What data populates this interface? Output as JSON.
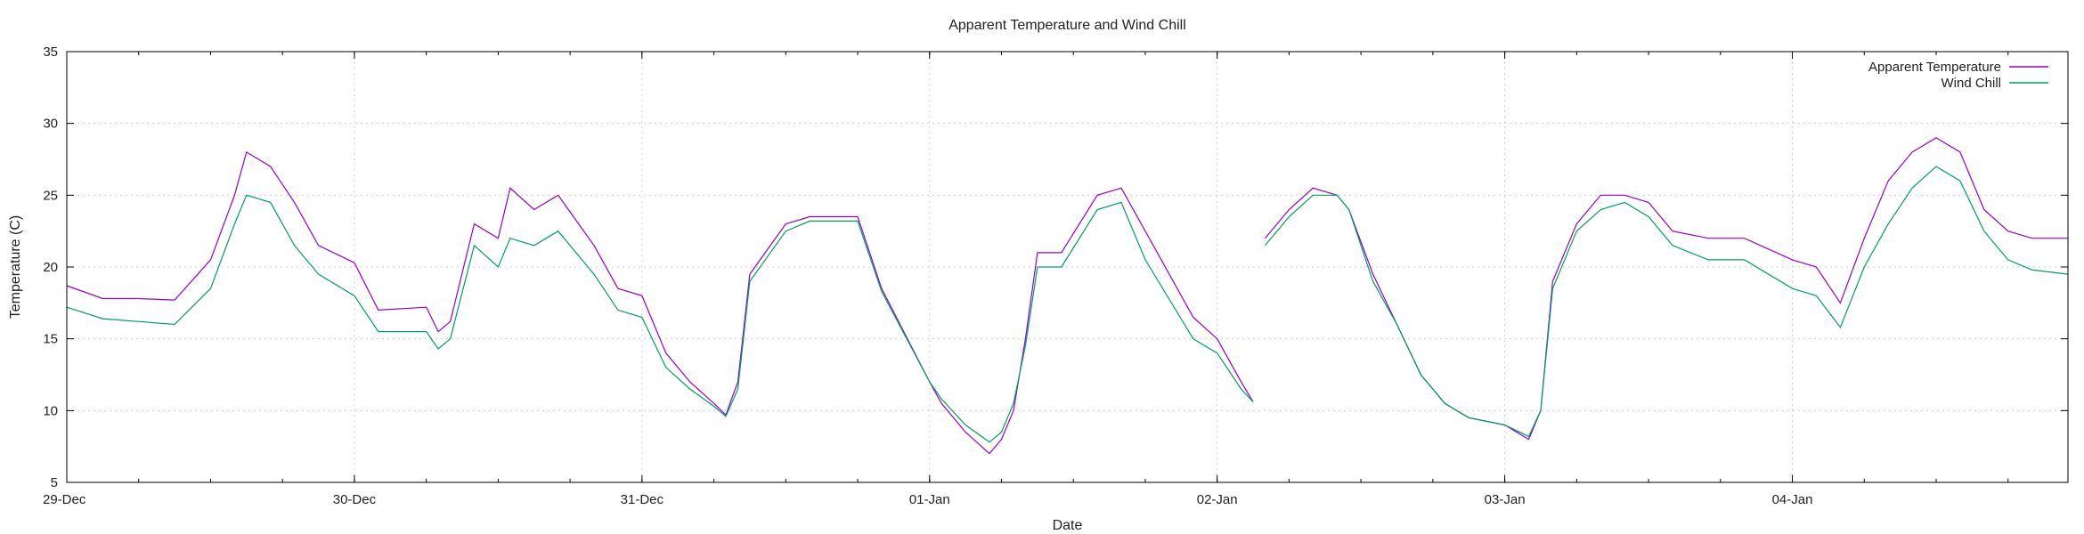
{
  "chart_data": {
    "type": "line",
    "title": "Apparent Temperature and Wind Chill",
    "xlabel": "Date",
    "ylabel": "Temperature (C)",
    "xlim": [
      "2024-12-29T00:00",
      "2025-01-04T23:00"
    ],
    "ylim": [
      5,
      35
    ],
    "yticks": [
      5,
      10,
      15,
      20,
      25,
      30,
      35
    ],
    "xticks": [
      {
        "label": "29-Dec",
        "value": "2024-12-29T00:00"
      },
      {
        "label": "30-Dec",
        "value": "2024-12-30T00:00"
      },
      {
        "label": "31-Dec",
        "value": "2024-12-31T00:00"
      },
      {
        "label": "01-Jan",
        "value": "2025-01-01T00:00"
      },
      {
        "label": "02-Jan",
        "value": "2025-01-02T00:00"
      },
      {
        "label": "03-Jan",
        "value": "2025-01-03T00:00"
      },
      {
        "label": "04-Jan",
        "value": "2025-01-04T00:00"
      }
    ],
    "grid": true,
    "legend_position": "top-right",
    "series": [
      {
        "name": "Apparent Temperature",
        "color": "#9400d3",
        "points": [
          [
            "2024-12-29T00:00",
            18.7
          ],
          [
            "2024-12-29T03:00",
            17.8
          ],
          [
            "2024-12-29T06:00",
            17.8
          ],
          [
            "2024-12-29T09:00",
            17.7
          ],
          [
            "2024-12-29T12:00",
            20.5
          ],
          [
            "2024-12-29T14:00",
            25.0
          ],
          [
            "2024-12-29T15:00",
            28.0
          ],
          [
            "2024-12-29T17:00",
            27.0
          ],
          [
            "2024-12-29T19:00",
            24.5
          ],
          [
            "2024-12-29T21:00",
            21.5
          ],
          [
            "2024-12-30T00:00",
            20.3
          ],
          [
            "2024-12-30T02:00",
            17.0
          ],
          [
            "2024-12-30T06:00",
            17.2
          ],
          [
            "2024-12-30T07:00",
            15.5
          ],
          [
            "2024-12-30T08:00",
            16.2
          ],
          [
            "2024-12-30T10:00",
            23.0
          ],
          [
            "2024-12-30T12:00",
            22.0
          ],
          [
            "2024-12-30T13:00",
            25.5
          ],
          [
            "2024-12-30T15:00",
            24.0
          ],
          [
            "2024-12-30T17:00",
            25.0
          ],
          [
            "2024-12-30T20:00",
            21.5
          ],
          [
            "2024-12-30T22:00",
            18.5
          ],
          [
            "2024-12-31T00:00",
            18.0
          ],
          [
            "2024-12-31T02:00",
            14.0
          ],
          [
            "2024-12-31T04:00",
            12.0
          ],
          [
            "2024-12-31T06:00",
            10.5
          ],
          [
            "2024-12-31T07:00",
            9.7
          ],
          [
            "2024-12-31T08:00",
            12.0
          ],
          [
            "2024-12-31T09:00",
            19.5
          ],
          [
            "2024-12-31T12:00",
            23.0
          ],
          [
            "2024-12-31T14:00",
            23.5
          ],
          [
            "2024-12-31T18:00",
            23.5
          ],
          [
            "2024-12-31T20:00",
            18.5
          ],
          [
            "2025-01-01T00:00",
            12.0
          ],
          [
            "2025-01-01T01:00",
            10.5
          ],
          [
            "2025-01-01T03:00",
            8.5
          ],
          [
            "2025-01-01T05:00",
            7.0
          ],
          [
            "2025-01-01T06:00",
            8.0
          ],
          [
            "2025-01-01T07:00",
            10.0
          ],
          [
            "2025-01-01T08:00",
            15.0
          ],
          [
            "2025-01-01T09:00",
            21.0
          ],
          [
            "2025-01-01T11:00",
            21.0
          ],
          [
            "2025-01-01T14:00",
            25.0
          ],
          [
            "2025-01-01T16:00",
            25.5
          ],
          [
            "2025-01-01T18:00",
            22.5
          ],
          [
            "2025-01-01T22:00",
            16.5
          ],
          [
            "2025-01-02T00:00",
            15.0
          ],
          [
            "2025-01-02T02:00",
            12.0
          ],
          [
            "2025-01-02T03:00",
            10.6
          ]
        ],
        "gap_after": "2025-01-02T03:00",
        "points2": [
          [
            "2025-01-02T04:00",
            22.0
          ],
          [
            "2025-01-02T06:00",
            24.0
          ],
          [
            "2025-01-02T08:00",
            25.5
          ],
          [
            "2025-01-02T10:00",
            25.0
          ],
          [
            "2025-01-02T11:00",
            24.0
          ],
          [
            "2025-01-02T13:00",
            19.5
          ],
          [
            "2025-01-02T15:00",
            16.0
          ],
          [
            "2025-01-02T17:00",
            12.5
          ],
          [
            "2025-01-02T19:00",
            10.5
          ],
          [
            "2025-01-02T21:00",
            9.5
          ],
          [
            "2025-01-03T00:00",
            9.0
          ],
          [
            "2025-01-03T02:00",
            8.0
          ],
          [
            "2025-01-03T03:00",
            10.0
          ],
          [
            "2025-01-03T04:00",
            19.0
          ],
          [
            "2025-01-03T06:00",
            23.0
          ],
          [
            "2025-01-03T08:00",
            25.0
          ],
          [
            "2025-01-03T10:00",
            25.0
          ],
          [
            "2025-01-03T12:00",
            24.5
          ],
          [
            "2025-01-03T14:00",
            22.5
          ],
          [
            "2025-01-03T17:00",
            22.0
          ],
          [
            "2025-01-03T20:00",
            22.0
          ],
          [
            "2025-01-04T00:00",
            20.5
          ],
          [
            "2025-01-04T02:00",
            20.0
          ],
          [
            "2025-01-04T04:00",
            17.5
          ],
          [
            "2025-01-04T06:00",
            22.0
          ],
          [
            "2025-01-04T08:00",
            26.0
          ],
          [
            "2025-01-04T10:00",
            28.0
          ],
          [
            "2025-01-04T12:00",
            29.0
          ],
          [
            "2025-01-04T14:00",
            28.0
          ],
          [
            "2025-01-04T16:00",
            24.0
          ],
          [
            "2025-01-04T18:00",
            22.5
          ],
          [
            "2025-01-04T20:00",
            22.0
          ],
          [
            "2025-01-04T23:00",
            22.0
          ]
        ]
      },
      {
        "name": "Wind Chill",
        "color": "#00a060",
        "points": [
          [
            "2024-12-29T00:00",
            17.2
          ],
          [
            "2024-12-29T03:00",
            16.4
          ],
          [
            "2024-12-29T06:00",
            16.2
          ],
          [
            "2024-12-29T09:00",
            16.0
          ],
          [
            "2024-12-29T12:00",
            18.5
          ],
          [
            "2024-12-29T14:00",
            23.0
          ],
          [
            "2024-12-29T15:00",
            25.0
          ],
          [
            "2024-12-29T17:00",
            24.5
          ],
          [
            "2024-12-29T19:00",
            21.5
          ],
          [
            "2024-12-29T21:00",
            19.5
          ],
          [
            "2024-12-30T00:00",
            18.0
          ],
          [
            "2024-12-30T02:00",
            15.5
          ],
          [
            "2024-12-30T06:00",
            15.5
          ],
          [
            "2024-12-30T07:00",
            14.3
          ],
          [
            "2024-12-30T08:00",
            15.0
          ],
          [
            "2024-12-30T10:00",
            21.5
          ],
          [
            "2024-12-30T12:00",
            20.0
          ],
          [
            "2024-12-30T13:00",
            22.0
          ],
          [
            "2024-12-30T15:00",
            21.5
          ],
          [
            "2024-12-30T17:00",
            22.5
          ],
          [
            "2024-12-30T20:00",
            19.5
          ],
          [
            "2024-12-30T22:00",
            17.0
          ],
          [
            "2024-12-31T00:00",
            16.5
          ],
          [
            "2024-12-31T02:00",
            13.0
          ],
          [
            "2024-12-31T04:00",
            11.5
          ],
          [
            "2024-12-31T06:00",
            10.3
          ],
          [
            "2024-12-31T07:00",
            9.6
          ],
          [
            "2024-12-31T08:00",
            11.5
          ],
          [
            "2024-12-31T09:00",
            19.0
          ],
          [
            "2024-12-31T12:00",
            22.5
          ],
          [
            "2024-12-31T14:00",
            23.2
          ],
          [
            "2024-12-31T18:00",
            23.2
          ],
          [
            "2024-12-31T20:00",
            18.3
          ],
          [
            "2025-01-01T00:00",
            12.0
          ],
          [
            "2025-01-01T01:00",
            10.8
          ],
          [
            "2025-01-01T03:00",
            9.0
          ],
          [
            "2025-01-01T05:00",
            7.8
          ],
          [
            "2025-01-01T06:00",
            8.5
          ],
          [
            "2025-01-01T07:00",
            10.5
          ],
          [
            "2025-01-01T08:00",
            14.5
          ],
          [
            "2025-01-01T09:00",
            20.0
          ],
          [
            "2025-01-01T11:00",
            20.0
          ],
          [
            "2025-01-01T14:00",
            24.0
          ],
          [
            "2025-01-01T16:00",
            24.5
          ],
          [
            "2025-01-01T18:00",
            20.5
          ],
          [
            "2025-01-01T22:00",
            15.0
          ],
          [
            "2025-01-02T00:00",
            14.0
          ],
          [
            "2025-01-02T02:00",
            11.5
          ],
          [
            "2025-01-02T03:00",
            10.6
          ]
        ],
        "gap_after": "2025-01-02T03:00",
        "points2": [
          [
            "2025-01-02T04:00",
            21.5
          ],
          [
            "2025-01-02T06:00",
            23.5
          ],
          [
            "2025-01-02T08:00",
            25.0
          ],
          [
            "2025-01-02T10:00",
            25.0
          ],
          [
            "2025-01-02T11:00",
            24.0
          ],
          [
            "2025-01-02T13:00",
            19.0
          ],
          [
            "2025-01-02T15:00",
            16.0
          ],
          [
            "2025-01-02T17:00",
            12.5
          ],
          [
            "2025-01-02T19:00",
            10.5
          ],
          [
            "2025-01-02T21:00",
            9.5
          ],
          [
            "2025-01-03T00:00",
            9.0
          ],
          [
            "2025-01-03T02:00",
            8.2
          ],
          [
            "2025-01-03T03:00",
            10.0
          ],
          [
            "2025-01-03T04:00",
            18.5
          ],
          [
            "2025-01-03T06:00",
            22.5
          ],
          [
            "2025-01-03T08:00",
            24.0
          ],
          [
            "2025-01-03T10:00",
            24.5
          ],
          [
            "2025-01-03T12:00",
            23.5
          ],
          [
            "2025-01-03T14:00",
            21.5
          ],
          [
            "2025-01-03T17:00",
            20.5
          ],
          [
            "2025-01-03T20:00",
            20.5
          ],
          [
            "2025-01-04T00:00",
            18.5
          ],
          [
            "2025-01-04T02:00",
            18.0
          ],
          [
            "2025-01-04T04:00",
            15.8
          ],
          [
            "2025-01-04T06:00",
            20.0
          ],
          [
            "2025-01-04T08:00",
            23.0
          ],
          [
            "2025-01-04T10:00",
            25.5
          ],
          [
            "2025-01-04T12:00",
            27.0
          ],
          [
            "2025-01-04T14:00",
            26.0
          ],
          [
            "2025-01-04T16:00",
            22.5
          ],
          [
            "2025-01-04T18:00",
            20.5
          ],
          [
            "2025-01-04T20:00",
            19.8
          ],
          [
            "2025-01-04T23:00",
            19.5
          ]
        ]
      }
    ]
  }
}
